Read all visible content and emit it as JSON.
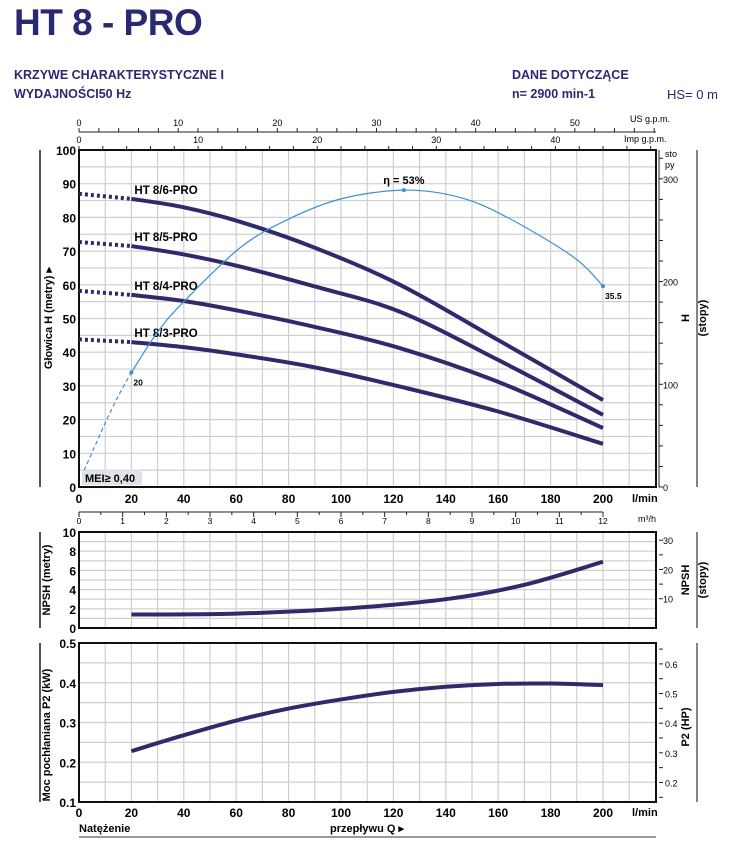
{
  "header": {
    "title": "HT 8 - PRO",
    "subtitle_line1": "KRZYWE CHARAKTERYSTYCZNE I",
    "subtitle_line2": "WYDAJNOŚCI50 Hz",
    "ref_title": "DANE DOTYCZĄCE",
    "speed": "n= 2900 min-1",
    "hs": "HS= 0 m"
  },
  "colors": {
    "title": "#2b2872",
    "curve": "#2e2a6b",
    "efficiency": "#3b8fd6",
    "grid": "#cfcfcf"
  },
  "chart_data": [
    {
      "type": "line",
      "title": "",
      "xlabel": "l/min",
      "ylabel": "Głowica H (metry) ▸",
      "ylabel_right": "H",
      "ylabel_right_unit": "(stopy)",
      "xlim": [
        0,
        220
      ],
      "ylim": [
        0,
        100
      ],
      "xticks": [
        0,
        20,
        40,
        60,
        80,
        100,
        120,
        140,
        160,
        180,
        200
      ],
      "yticks": [
        0,
        10,
        20,
        30,
        40,
        50,
        60,
        70,
        80,
        90,
        100
      ],
      "grid": true,
      "secondary_axes": {
        "m3h": {
          "label": "m³/h",
          "ticks": [
            0,
            1,
            2,
            3,
            4,
            5,
            6,
            7,
            8,
            9,
            10,
            11,
            12
          ]
        },
        "us_gpm": {
          "label": "US g.p.m.",
          "ticks": [
            0,
            10,
            20,
            30,
            40,
            50
          ]
        },
        "imp_gpm": {
          "label": "Imp g.p.m.",
          "ticks": [
            0,
            10,
            20,
            30,
            40
          ]
        },
        "feet": {
          "label_top1": "sto",
          "label_top2": "py",
          "ticks": [
            0,
            100,
            200,
            300
          ]
        }
      },
      "series": [
        {
          "name": "HT 8/6-PRO",
          "x": [
            20,
            40,
            61.5,
            90,
            122.5,
            160,
            200
          ],
          "y": [
            85.5,
            83,
            78.7,
            71,
            60,
            43.6,
            25.8
          ],
          "extrapolated": {
            "x": [
              0,
              20
            ],
            "y": [
              87,
              85.5
            ]
          }
        },
        {
          "name": "HT 8/5-PRO",
          "x": [
            20,
            40,
            61.5,
            90,
            122.5,
            160,
            200
          ],
          "y": [
            71.5,
            69,
            65.4,
            59.5,
            52,
            37.7,
            21.4
          ],
          "extrapolated": {
            "x": [
              0,
              20
            ],
            "y": [
              72.7,
              71.5
            ]
          }
        },
        {
          "name": "HT 8/4-PRO",
          "x": [
            20,
            40,
            61.5,
            90,
            122.5,
            160,
            200
          ],
          "y": [
            57,
            55.2,
            52.2,
            47.5,
            41.2,
            31.2,
            17.5
          ],
          "extrapolated": {
            "x": [
              0,
              20
            ],
            "y": [
              58.2,
              57
            ]
          }
        },
        {
          "name": "HT 8/3-PRO",
          "x": [
            20,
            40,
            61.5,
            90,
            122.5,
            160,
            200
          ],
          "y": [
            43,
            41.5,
            39.2,
            35.5,
            29.8,
            22.4,
            12.8
          ],
          "extrapolated": {
            "x": [
              0,
              20
            ],
            "y": [
              43.8,
              43
            ]
          }
        }
      ],
      "efficiency_curve": {
        "x": [
          20,
          30,
          40,
          61.5,
          80,
          100,
          124,
          145,
          163,
          188.6,
          200
        ],
        "y": [
          34,
          46,
          55,
          71,
          79.5,
          85.5,
          88.1,
          86,
          80.2,
          68.3,
          59.6
        ],
        "dashed": {
          "x": [
            2,
            6,
            10,
            15,
            20
          ],
          "y": [
            5,
            12,
            19,
            27,
            34
          ]
        },
        "labels": [
          {
            "x": 20,
            "y": 34,
            "text": "20"
          },
          {
            "x": 124,
            "y": 88.1,
            "text": "η = 53%"
          },
          {
            "x": 200,
            "y": 59.6,
            "text": "35.5"
          }
        ]
      },
      "annotation": "MEI≥ 0,40"
    },
    {
      "type": "line",
      "ylabel": "NPSH (metry)",
      "ylabel_right": "NPSH",
      "ylabel_right_unit": "(stopy)",
      "xlim": [
        0,
        220
      ],
      "ylim": [
        0,
        10
      ],
      "yticks": [
        0,
        2,
        4,
        6,
        8,
        10
      ],
      "yticks_right_feet": [
        10,
        20,
        30
      ],
      "grid": true,
      "series": [
        {
          "x": [
            20,
            60,
            100,
            140,
            170,
            200
          ],
          "y": [
            1.4,
            1.5,
            2.0,
            3.0,
            4.5,
            6.9
          ]
        }
      ]
    },
    {
      "type": "line",
      "xlabel": "l/min",
      "ylabel": "Moc pochłaniana P2 (kW)",
      "ylabel_right": "P2 (HP)",
      "xlim": [
        0,
        220
      ],
      "ylim": [
        0.1,
        0.5
      ],
      "xticks": [
        0,
        20,
        40,
        60,
        80,
        100,
        120,
        140,
        160,
        180,
        200
      ],
      "yticks": [
        0.1,
        0.2,
        0.3,
        0.4,
        0.5
      ],
      "yticks_right_hp": [
        0.2,
        0.3,
        0.4,
        0.5,
        0.6
      ],
      "grid": true,
      "series": [
        {
          "x": [
            20,
            40,
            60,
            80,
            100,
            120,
            140,
            160,
            180,
            200
          ],
          "y": [
            0.228,
            0.268,
            0.305,
            0.335,
            0.358,
            0.377,
            0.39,
            0.397,
            0.398,
            0.394
          ]
        }
      ],
      "footer_left": "Natężenie",
      "footer_center": "przepływu Q ▸"
    }
  ]
}
